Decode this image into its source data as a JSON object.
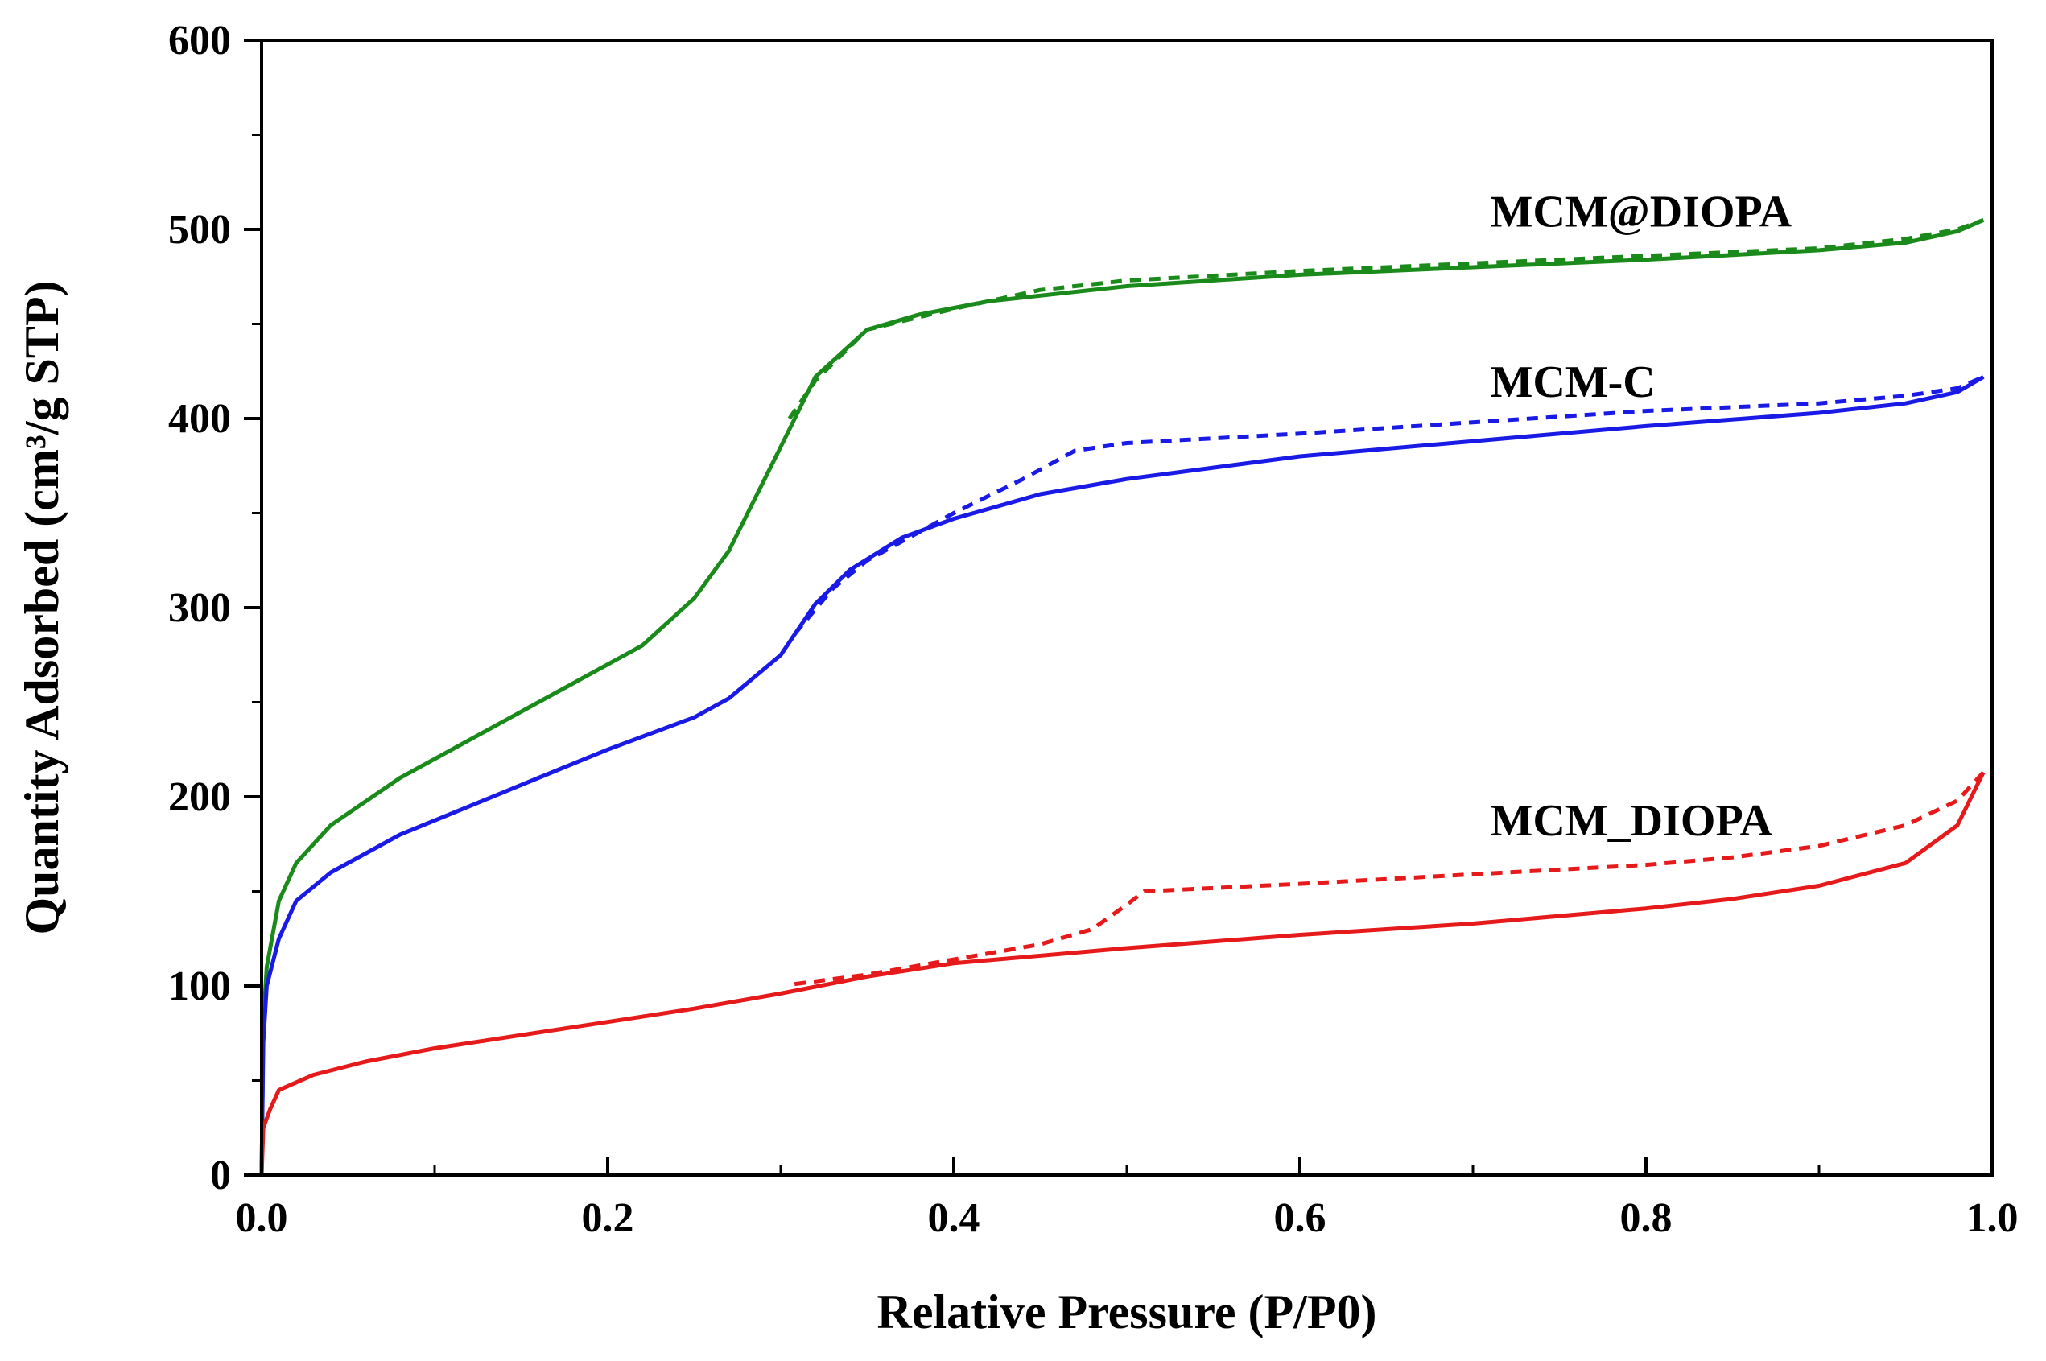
{
  "chart_data": {
    "type": "line",
    "title": "",
    "xlabel": "Relative Pressure (P/P0)",
    "ylabel": "Quantity Adsorbed (cm³/g STP)",
    "xlim": [
      0.0,
      1.0
    ],
    "ylim": [
      0,
      600
    ],
    "x_ticks": [
      "0.0",
      "0.2",
      "0.4",
      "0.6",
      "0.8",
      "1.0"
    ],
    "y_ticks": [
      "0",
      "100",
      "200",
      "300",
      "400",
      "500",
      "600"
    ],
    "grid": false,
    "legend": "inline labels",
    "series": [
      {
        "name": "MCM@DIOPA",
        "color": "#1a8a1a",
        "adsorption": [
          [
            0.0,
            0
          ],
          [
            0.001,
            80
          ],
          [
            0.003,
            110
          ],
          [
            0.01,
            145
          ],
          [
            0.02,
            165
          ],
          [
            0.04,
            185
          ],
          [
            0.08,
            210
          ],
          [
            0.12,
            230
          ],
          [
            0.16,
            250
          ],
          [
            0.2,
            270
          ],
          [
            0.22,
            280
          ],
          [
            0.25,
            305
          ],
          [
            0.27,
            330
          ],
          [
            0.3,
            385
          ],
          [
            0.32,
            422
          ],
          [
            0.35,
            447
          ],
          [
            0.38,
            455
          ],
          [
            0.42,
            462
          ],
          [
            0.5,
            470
          ],
          [
            0.6,
            476
          ],
          [
            0.7,
            480
          ],
          [
            0.8,
            484
          ],
          [
            0.9,
            489
          ],
          [
            0.95,
            493
          ],
          [
            0.98,
            499
          ],
          [
            0.995,
            505
          ]
        ],
        "desorption": [
          [
            0.305,
            400
          ],
          [
            0.32,
            420
          ],
          [
            0.35,
            447
          ],
          [
            0.4,
            458
          ],
          [
            0.45,
            468
          ],
          [
            0.5,
            473
          ],
          [
            0.6,
            478
          ],
          [
            0.7,
            482
          ],
          [
            0.8,
            486
          ],
          [
            0.9,
            490
          ],
          [
            0.95,
            495
          ],
          [
            0.98,
            500
          ],
          [
            0.995,
            505
          ]
        ]
      },
      {
        "name": "MCM-C",
        "color": "#1a1ae6",
        "adsorption": [
          [
            0.0,
            0
          ],
          [
            0.001,
            70
          ],
          [
            0.003,
            100
          ],
          [
            0.01,
            125
          ],
          [
            0.02,
            145
          ],
          [
            0.04,
            160
          ],
          [
            0.08,
            180
          ],
          [
            0.12,
            195
          ],
          [
            0.16,
            210
          ],
          [
            0.2,
            225
          ],
          [
            0.25,
            242
          ],
          [
            0.27,
            252
          ],
          [
            0.3,
            275
          ],
          [
            0.32,
            302
          ],
          [
            0.34,
            320
          ],
          [
            0.37,
            337
          ],
          [
            0.4,
            347
          ],
          [
            0.45,
            360
          ],
          [
            0.5,
            368
          ],
          [
            0.6,
            380
          ],
          [
            0.7,
            388
          ],
          [
            0.8,
            396
          ],
          [
            0.9,
            403
          ],
          [
            0.95,
            408
          ],
          [
            0.98,
            414
          ],
          [
            0.995,
            422
          ]
        ],
        "desorption": [
          [
            0.308,
            286
          ],
          [
            0.33,
            310
          ],
          [
            0.35,
            325
          ],
          [
            0.4,
            350
          ],
          [
            0.44,
            368
          ],
          [
            0.47,
            383
          ],
          [
            0.5,
            387
          ],
          [
            0.6,
            392
          ],
          [
            0.7,
            398
          ],
          [
            0.8,
            404
          ],
          [
            0.9,
            408
          ],
          [
            0.95,
            412
          ],
          [
            0.98,
            416
          ],
          [
            0.995,
            422
          ]
        ]
      },
      {
        "name": "MCM_DIOPA",
        "color": "#e61a1a",
        "adsorption": [
          [
            0.0,
            0
          ],
          [
            0.001,
            25
          ],
          [
            0.005,
            35
          ],
          [
            0.01,
            45
          ],
          [
            0.03,
            53
          ],
          [
            0.06,
            60
          ],
          [
            0.1,
            67
          ],
          [
            0.15,
            74
          ],
          [
            0.2,
            81
          ],
          [
            0.25,
            88
          ],
          [
            0.3,
            96
          ],
          [
            0.35,
            105
          ],
          [
            0.4,
            112
          ],
          [
            0.5,
            120
          ],
          [
            0.6,
            127
          ],
          [
            0.7,
            133
          ],
          [
            0.8,
            141
          ],
          [
            0.85,
            146
          ],
          [
            0.9,
            153
          ],
          [
            0.95,
            165
          ],
          [
            0.98,
            185
          ],
          [
            0.995,
            213
          ]
        ],
        "desorption": [
          [
            0.308,
            101
          ],
          [
            0.35,
            106
          ],
          [
            0.4,
            114
          ],
          [
            0.45,
            122
          ],
          [
            0.48,
            130
          ],
          [
            0.5,
            143
          ],
          [
            0.51,
            150
          ],
          [
            0.6,
            154
          ],
          [
            0.7,
            159
          ],
          [
            0.8,
            164
          ],
          [
            0.85,
            168
          ],
          [
            0.9,
            174
          ],
          [
            0.95,
            185
          ],
          [
            0.98,
            198
          ],
          [
            0.995,
            213
          ]
        ]
      }
    ],
    "annotations": [
      {
        "text": "MCM@DIOPA",
        "x": 0.71,
        "y": 510
      },
      {
        "text": "MCM-C",
        "x": 0.71,
        "y": 420
      },
      {
        "text": "MCM_DIOPA",
        "x": 0.71,
        "y": 188
      }
    ]
  }
}
